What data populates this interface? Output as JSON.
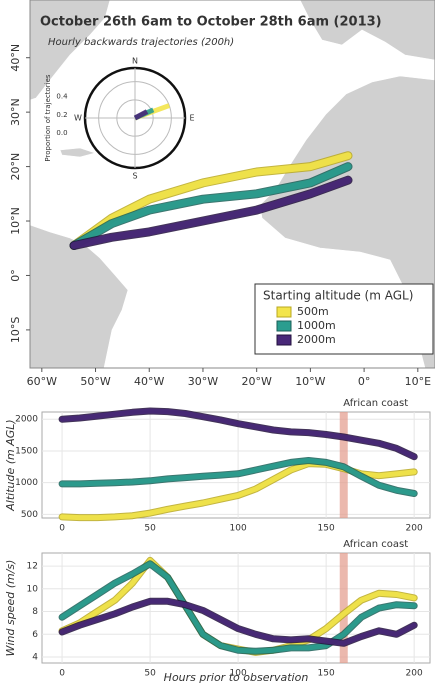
{
  "chart_data": [
    {
      "type": "map",
      "title": "October 26th 6am to October 28th 6am (2013)",
      "subtitle": "Hourly backwards trajectories (200h)",
      "xlim": [
        -62.2,
        13.2
      ],
      "ylim": [
        -17,
        50.6
      ],
      "xticks": [
        {
          "value": -60,
          "label": "60°W"
        },
        {
          "value": -50,
          "label": "50°W"
        },
        {
          "value": -40,
          "label": "40°W"
        },
        {
          "value": -30,
          "label": "30°W"
        },
        {
          "value": -20,
          "label": "20°W"
        },
        {
          "value": -10,
          "label": "10°W"
        },
        {
          "value": 0,
          "label": "0°"
        },
        {
          "value": 10,
          "label": "10°E"
        }
      ],
      "yticks": [
        {
          "value": -10,
          "label": "10°S"
        },
        {
          "value": 0,
          "label": "0°"
        },
        {
          "value": 10,
          "label": "10°N"
        },
        {
          "value": 20,
          "label": "20°N"
        },
        {
          "value": 30,
          "label": "30°N"
        },
        {
          "value": 40,
          "label": "40°N"
        }
      ],
      "legend_title": "Starting altitude (m AGL)",
      "legend": "bottom-right",
      "series": [
        {
          "name": "500m",
          "color": "#f3e54b",
          "x": [
            -54,
            -47,
            -40,
            -30,
            -20,
            -10,
            -3
          ],
          "values": [
            5.5,
            10.5,
            14,
            17,
            19,
            20,
            22
          ]
        },
        {
          "name": "1000m",
          "color": "#2a9d8f",
          "x": [
            -54,
            -47,
            -40,
            -30,
            -20,
            -10,
            -3
          ],
          "values": [
            5.5,
            9.5,
            12,
            14,
            15,
            17,
            20
          ]
        },
        {
          "name": "2000m",
          "color": "#482878",
          "x": [
            -54,
            -47,
            -40,
            -30,
            -20,
            -10,
            -3
          ],
          "values": [
            5.5,
            7,
            8,
            10,
            12,
            15,
            17.5
          ]
        }
      ]
    },
    {
      "type": "polar",
      "ylabel": "Proportion of trajectories",
      "directions": [
        "N",
        "E",
        "S",
        "W"
      ],
      "rlim": [
        0,
        0.55
      ],
      "rticks": [
        {
          "value": 0,
          "label": "0.0"
        },
        0.2,
        0.4
      ],
      "series": [
        {
          "color": "#f3e54b",
          "x": [
            70
          ],
          "values": [
            0.4
          ]
        },
        {
          "color": "#2a9d8f",
          "x": [
            66
          ],
          "values": [
            0.22
          ]
        },
        {
          "color": "#482878",
          "x": [
            62
          ],
          "values": [
            0.15
          ]
        }
      ]
    },
    {
      "type": "line",
      "ylabel": "Altitude (m AGL)",
      "annotations": [
        {
          "text": "African coast",
          "x": 160
        }
      ],
      "xlim": [
        -11.4,
        209
      ],
      "ylim": [
        443,
        2114
      ],
      "xticks": [
        0,
        50,
        100,
        150,
        200
      ],
      "yticks": [
        500,
        1000,
        1500,
        2000
      ],
      "grid": true,
      "x": [
        0,
        10,
        20,
        30,
        40,
        50,
        60,
        70,
        80,
        90,
        100,
        110,
        120,
        130,
        140,
        150,
        160,
        170,
        180,
        190,
        200
      ],
      "series": [
        {
          "color": "#f3e54b",
          "values": [
            460,
            450,
            450,
            460,
            480,
            520,
            580,
            630,
            680,
            740,
            800,
            900,
            1050,
            1200,
            1300,
            1290,
            1220,
            1140,
            1110,
            1140,
            1170
          ]
        },
        {
          "color": "#2a9d8f",
          "values": [
            980,
            980,
            990,
            1000,
            1010,
            1030,
            1060,
            1080,
            1100,
            1120,
            1140,
            1200,
            1260,
            1320,
            1350,
            1320,
            1250,
            1100,
            960,
            880,
            830
          ]
        },
        {
          "color": "#482878",
          "values": [
            2000,
            2020,
            2050,
            2080,
            2110,
            2130,
            2120,
            2090,
            2040,
            1990,
            1930,
            1880,
            1830,
            1800,
            1790,
            1760,
            1720,
            1670,
            1620,
            1540,
            1410
          ]
        }
      ]
    },
    {
      "type": "line",
      "ylabel": "Wind speed (m/s)",
      "xlabel": "Hours prior to observation",
      "annotations": [
        {
          "text": "African coast",
          "x": 160
        }
      ],
      "xlim": [
        -11.4,
        209
      ],
      "ylim": [
        3.47,
        13.15
      ],
      "xticks": [
        0,
        50,
        100,
        150,
        200
      ],
      "yticks": [
        4,
        6,
        8,
        10,
        12
      ],
      "grid": true,
      "x": [
        0,
        10,
        20,
        30,
        40,
        50,
        60,
        70,
        80,
        90,
        100,
        110,
        120,
        130,
        140,
        150,
        160,
        170,
        180,
        190,
        200
      ],
      "series": [
        {
          "color": "#f3e54b",
          "values": [
            6.3,
            7,
            8,
            9,
            10.5,
            12.5,
            11,
            8.5,
            6,
            5,
            4.7,
            4.4,
            4.6,
            5,
            5.5,
            6.5,
            7.8,
            9,
            9.6,
            9.5,
            9.2
          ]
        },
        {
          "color": "#2a9d8f",
          "values": [
            7.5,
            8.5,
            9.5,
            10.5,
            11.3,
            12.2,
            11,
            8.5,
            6,
            5,
            4.6,
            4.5,
            4.6,
            4.8,
            4.8,
            5,
            6,
            7.5,
            8.3,
            8.6,
            8.5
          ]
        },
        {
          "color": "#482878",
          "values": [
            6.2,
            6.8,
            7.3,
            7.8,
            8.4,
            8.9,
            8.9,
            8.6,
            8.1,
            7.3,
            6.5,
            6,
            5.6,
            5.5,
            5.6,
            5.4,
            5.2,
            5.8,
            6.3,
            6,
            6.8
          ]
        }
      ]
    }
  ]
}
